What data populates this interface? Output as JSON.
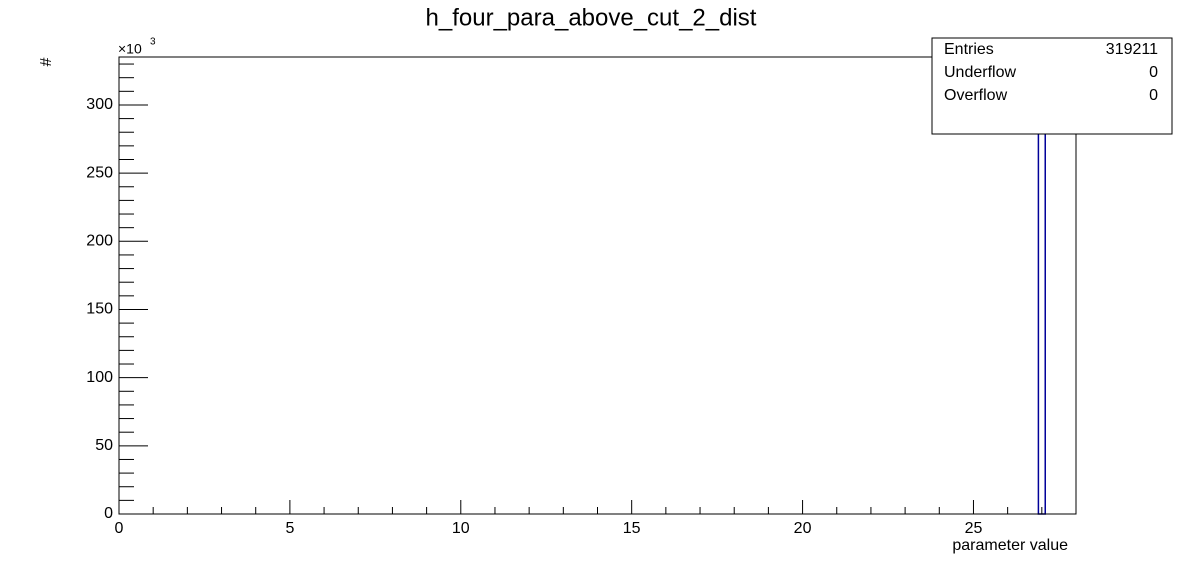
{
  "chart_data": {
    "type": "histogram",
    "title": "h_four_para_above_cut_2_dist",
    "x_label": "parameter value",
    "y_label": "#",
    "y_multiplier": "×10",
    "y_multiplier_exponent": "3",
    "bins": [
      26.9,
      27.1
    ],
    "values": [
      319.211
    ],
    "color": "#000099",
    "xlim": [
      0,
      28
    ],
    "ylim": [
      0,
      335.17
    ],
    "xticks": [
      0,
      5,
      10,
      15,
      20,
      25
    ],
    "yticks": [
      0,
      50,
      100,
      150,
      200,
      250,
      300
    ],
    "xminorticks": [
      1,
      2,
      3,
      4,
      6,
      7,
      8,
      9,
      11,
      12,
      13,
      14,
      16,
      17,
      18,
      19,
      21,
      22,
      23,
      24,
      26,
      27,
      28
    ],
    "yminorticks": [
      10,
      20,
      30,
      40,
      60,
      70,
      80,
      90,
      110,
      120,
      130,
      140,
      160,
      170,
      180,
      190,
      210,
      220,
      230,
      240,
      260,
      270,
      280,
      290,
      310,
      320,
      330
    ],
    "stats": [
      {
        "label": "Entries",
        "value": "319211"
      },
      {
        "label": "Underflow",
        "value": "0"
      },
      {
        "label": "Overflow",
        "value": "0"
      }
    ]
  }
}
